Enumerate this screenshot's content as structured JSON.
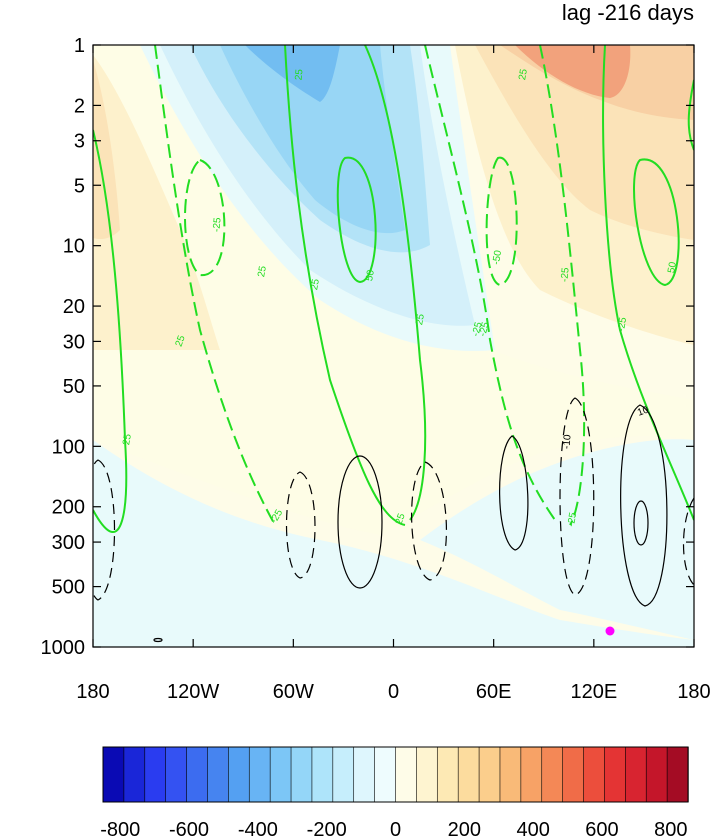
{
  "chart_data": {
    "type": "heatmap",
    "title": "lag -216 days",
    "x_ticks": [
      "180",
      "120W",
      "60W",
      "0",
      "60E",
      "120E",
      "180"
    ],
    "y_ticks": [
      "1",
      "2",
      "3",
      "5",
      "10",
      "20",
      "30",
      "50",
      "100",
      "200",
      "300",
      "500",
      "1000"
    ],
    "y_scale": "log",
    "y_range": [
      1000,
      1
    ],
    "x_range_degrees": [
      -180,
      180
    ],
    "colorbar": {
      "ticks": [
        "-800",
        "-600",
        "-400",
        "-200",
        "0",
        "200",
        "400",
        "600",
        "800"
      ],
      "range": [
        -850,
        850
      ],
      "interval": 50,
      "colors": [
        "#0a0ab4",
        "#1a26d8",
        "#2a3cf0",
        "#3452f2",
        "#3c6cf0",
        "#4684f0",
        "#54a0f2",
        "#68b4f4",
        "#7cc6f6",
        "#94d6f8",
        "#aee4fa",
        "#c6eefc",
        "#def6fd",
        "#eefcfe",
        "#fefce8",
        "#fef4d0",
        "#fde9b4",
        "#fcdc9e",
        "#fbce8c",
        "#f9ba78",
        "#f7a266",
        "#f48856",
        "#f06c48",
        "#ec4e3c",
        "#e43434",
        "#d82430",
        "#c4162a",
        "#a40c24"
      ]
    },
    "shading_levels": {
      "cell_1_fill": "#fdf1cc",
      "cell_2_fill": "#fbe3b8",
      "cell_3_fill": "#f8d0a4",
      "cell_4_fill": "#f2a27c",
      "cell_5_fill": "#fefde6",
      "cell_6_fill": "#fefce8",
      "cell_7_fill": "#e8fafb",
      "cell_8_fill": "#d4f0fa",
      "cell_9_fill": "#b3e3f7",
      "cell_10_fill": "#98d6f5",
      "cell_11_fill": "#72bdf1"
    },
    "green_contour_labels": [
      "25",
      "25",
      "25",
      "25",
      "25",
      "25",
      "25",
      "25",
      "50",
      "50",
      "-25",
      "-25",
      "-25",
      "-25",
      "-25",
      "-25",
      "-25",
      "-50"
    ],
    "black_contour_labels": [
      "-10",
      "10"
    ],
    "line_colors": {
      "green": "#22dd22",
      "black": "#000000"
    },
    "marker": {
      "label": "",
      "color": "#ff00ff",
      "lon": 130,
      "p": 850
    }
  }
}
